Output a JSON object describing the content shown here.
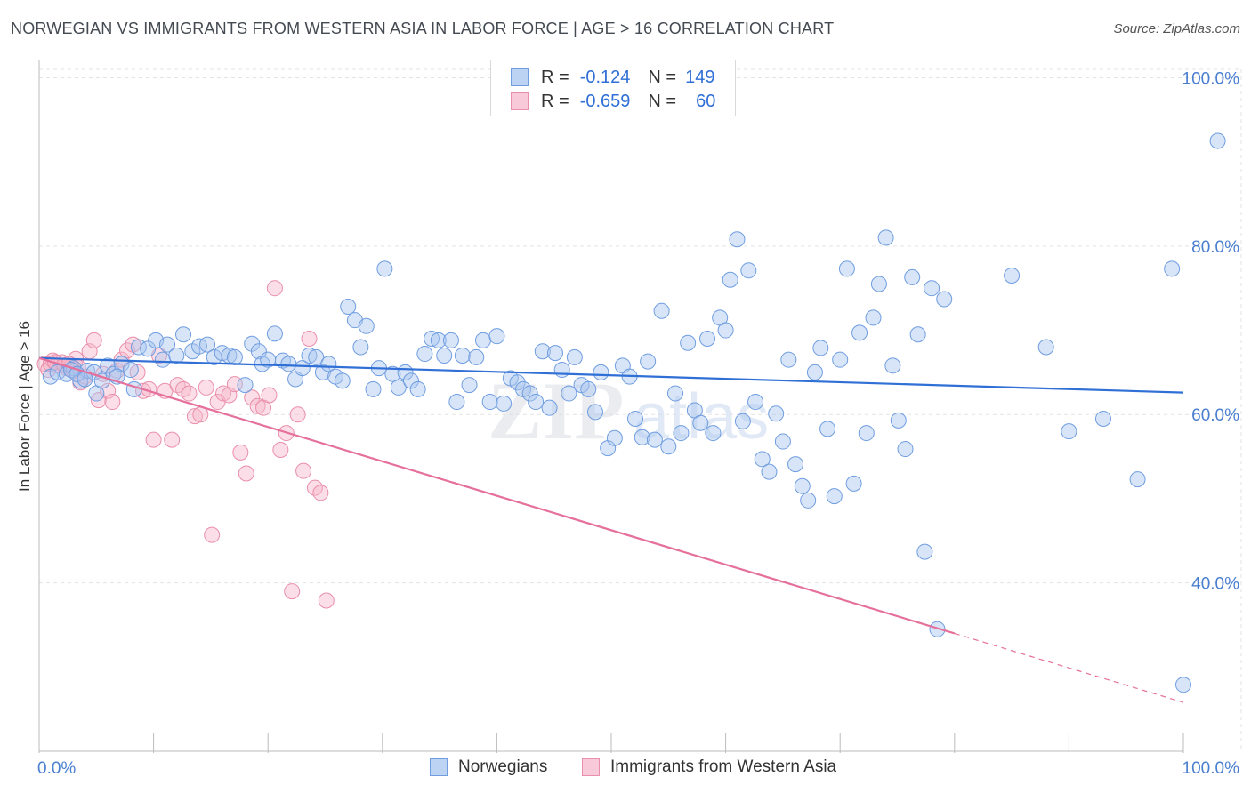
{
  "header": {
    "title": "NORWEGIAN VS IMMIGRANTS FROM WESTERN ASIA IN LABOR FORCE | AGE > 16 CORRELATION CHART",
    "source": "Source: ZipAtlas.com"
  },
  "legend": {
    "rows": [
      {
        "r_label": "R =",
        "r_value": "-0.124",
        "n_label": "N =",
        "n_value": "149"
      },
      {
        "r_label": "R =",
        "r_value": "-0.659",
        "n_label": "N =",
        "n_value": "60"
      }
    ]
  },
  "bottom_legend": {
    "items": [
      {
        "label": "Norwegians"
      },
      {
        "label": "Immigrants from Western Asia"
      }
    ]
  },
  "colors": {
    "blue_fill": "#a9c6f0",
    "blue_stroke": "#6f9de0",
    "blue_line": "#2f6fd6",
    "pink_fill": "#f6b6ca",
    "pink_stroke": "#ea8fab",
    "pink_line": "#e5709b",
    "tick_text": "#4a7fd0",
    "grid": "#e3e3e3"
  },
  "chart_data": {
    "type": "scatter",
    "title": "NORWEGIAN VS IMMIGRANTS FROM WESTERN ASIA IN LABOR FORCE | AGE > 16 CORRELATION CHART",
    "xlabel": "",
    "ylabel": "In Labor Force | Age > 16",
    "xlim": [
      0,
      100
    ],
    "ylim": [
      20,
      101
    ],
    "x_tick_labels": [
      "0.0%",
      "100.0%"
    ],
    "y_ticks": [
      40,
      60,
      80,
      100
    ],
    "y_tick_labels": [
      "40.0%",
      "60.0%",
      "80.0%",
      "100.0%"
    ],
    "grid": true,
    "watermark": "ZIPatlas",
    "series": [
      {
        "name": "Norwegians",
        "points": [
          [
            1.0,
            64.5
          ],
          [
            1.6,
            65.0
          ],
          [
            2.4,
            64.8
          ],
          [
            3.0,
            65.5
          ],
          [
            3.6,
            64.0
          ],
          [
            4.2,
            65.2
          ],
          [
            4.8,
            65.0
          ],
          [
            5.0,
            62.5
          ],
          [
            5.5,
            64.0
          ],
          [
            6.0,
            65.8
          ],
          [
            6.5,
            64.8
          ],
          [
            7.2,
            66.0
          ],
          [
            8.0,
            65.3
          ],
          [
            8.7,
            68.0
          ],
          [
            9.5,
            67.8
          ],
          [
            10.2,
            68.8
          ],
          [
            10.8,
            66.5
          ],
          [
            11.2,
            68.3
          ],
          [
            12.0,
            67.0
          ],
          [
            12.6,
            69.5
          ],
          [
            13.4,
            67.5
          ],
          [
            14.0,
            68.1
          ],
          [
            14.7,
            68.3
          ],
          [
            15.3,
            66.8
          ],
          [
            16.0,
            67.3
          ],
          [
            16.6,
            67.0
          ],
          [
            17.1,
            66.8
          ],
          [
            18.0,
            63.5
          ],
          [
            18.6,
            68.4
          ],
          [
            19.2,
            67.5
          ],
          [
            19.5,
            66.0
          ],
          [
            20.0,
            66.5
          ],
          [
            20.6,
            69.6
          ],
          [
            21.3,
            66.4
          ],
          [
            21.8,
            66.0
          ],
          [
            22.4,
            64.2
          ],
          [
            23.0,
            65.5
          ],
          [
            23.6,
            67.0
          ],
          [
            24.2,
            66.8
          ],
          [
            24.8,
            65.0
          ],
          [
            25.3,
            66.0
          ],
          [
            25.9,
            64.5
          ],
          [
            26.5,
            64.0
          ],
          [
            27.0,
            72.8
          ],
          [
            27.6,
            71.2
          ],
          [
            28.1,
            68.0
          ],
          [
            28.6,
            70.5
          ],
          [
            29.2,
            63.0
          ],
          [
            29.7,
            65.5
          ],
          [
            30.2,
            77.3
          ],
          [
            30.9,
            64.8
          ],
          [
            31.4,
            63.2
          ],
          [
            32.0,
            65.0
          ],
          [
            32.5,
            64.0
          ],
          [
            33.1,
            63.0
          ],
          [
            33.7,
            67.2
          ],
          [
            34.3,
            69.0
          ],
          [
            34.9,
            68.8
          ],
          [
            35.4,
            67.0
          ],
          [
            36.0,
            68.8
          ],
          [
            36.5,
            61.5
          ],
          [
            37.0,
            67.0
          ],
          [
            37.6,
            63.5
          ],
          [
            38.2,
            66.8
          ],
          [
            38.8,
            68.8
          ],
          [
            39.4,
            61.5
          ],
          [
            40.0,
            69.3
          ],
          [
            40.6,
            61.3
          ],
          [
            41.2,
            64.3
          ],
          [
            41.8,
            63.8
          ],
          [
            42.3,
            63.0
          ],
          [
            42.9,
            62.5
          ],
          [
            43.4,
            61.5
          ],
          [
            44.0,
            67.5
          ],
          [
            44.6,
            60.8
          ],
          [
            45.1,
            67.3
          ],
          [
            45.7,
            65.3
          ],
          [
            46.3,
            62.5
          ],
          [
            46.8,
            66.8
          ],
          [
            47.4,
            63.5
          ],
          [
            48.0,
            63.0
          ],
          [
            48.6,
            60.3
          ],
          [
            49.1,
            65.0
          ],
          [
            49.7,
            56.0
          ],
          [
            50.3,
            57.2
          ],
          [
            51.0,
            65.8
          ],
          [
            51.6,
            64.5
          ],
          [
            52.1,
            59.5
          ],
          [
            52.7,
            57.3
          ],
          [
            53.2,
            66.3
          ],
          [
            53.8,
            57.0
          ],
          [
            54.4,
            72.3
          ],
          [
            55.0,
            56.2
          ],
          [
            55.6,
            62.5
          ],
          [
            56.1,
            57.8
          ],
          [
            56.7,
            68.5
          ],
          [
            57.3,
            60.5
          ],
          [
            57.8,
            59.0
          ],
          [
            58.4,
            69.0
          ],
          [
            58.9,
            57.8
          ],
          [
            59.5,
            71.5
          ],
          [
            60.0,
            70.0
          ],
          [
            60.4,
            76.0
          ],
          [
            61.0,
            80.8
          ],
          [
            61.5,
            59.2
          ],
          [
            62.0,
            77.1
          ],
          [
            62.6,
            61.5
          ],
          [
            63.2,
            54.7
          ],
          [
            63.8,
            53.2
          ],
          [
            64.4,
            60.1
          ],
          [
            65.0,
            56.8
          ],
          [
            65.5,
            66.5
          ],
          [
            66.1,
            54.1
          ],
          [
            66.7,
            51.5
          ],
          [
            67.2,
            49.8
          ],
          [
            67.8,
            65.0
          ],
          [
            68.3,
            67.9
          ],
          [
            68.9,
            58.3
          ],
          [
            69.5,
            50.3
          ],
          [
            70.0,
            66.5
          ],
          [
            70.6,
            77.3
          ],
          [
            71.2,
            51.8
          ],
          [
            71.7,
            69.7
          ],
          [
            72.3,
            57.8
          ],
          [
            72.9,
            71.5
          ],
          [
            73.4,
            75.5
          ],
          [
            74.0,
            81.0
          ],
          [
            74.6,
            65.8
          ],
          [
            75.1,
            59.3
          ],
          [
            75.7,
            55.9
          ],
          [
            76.3,
            76.3
          ],
          [
            76.8,
            69.5
          ],
          [
            77.4,
            43.7
          ],
          [
            78.0,
            75.0
          ],
          [
            78.5,
            34.5
          ],
          [
            79.1,
            73.7
          ],
          [
            85.0,
            76.5
          ],
          [
            88.0,
            68.0
          ],
          [
            90.0,
            58.0
          ],
          [
            93.0,
            59.5
          ],
          [
            96.0,
            52.3
          ],
          [
            99.0,
            77.3
          ],
          [
            100.0,
            27.9
          ],
          [
            103.0,
            92.5
          ],
          [
            2.8,
            65.3
          ],
          [
            3.3,
            64.8
          ],
          [
            4.0,
            64.2
          ],
          [
            6.8,
            64.5
          ],
          [
            8.3,
            63.0
          ]
        ],
        "trend": [
          [
            0,
            66.7
          ],
          [
            100,
            62.6
          ]
        ]
      },
      {
        "name": "Immigrants from Western Asia",
        "points": [
          [
            0.5,
            66.0
          ],
          [
            0.8,
            65.3
          ],
          [
            1.2,
            66.4
          ],
          [
            1.6,
            65.8
          ],
          [
            2.0,
            66.2
          ],
          [
            2.4,
            65.5
          ],
          [
            2.8,
            65.7
          ],
          [
            3.2,
            66.6
          ],
          [
            3.6,
            63.8
          ],
          [
            4.0,
            64.5
          ],
          [
            4.4,
            67.5
          ],
          [
            4.8,
            68.8
          ],
          [
            5.2,
            61.7
          ],
          [
            5.6,
            64.8
          ],
          [
            6.0,
            62.8
          ],
          [
            6.4,
            61.5
          ],
          [
            6.8,
            65.2
          ],
          [
            7.2,
            66.5
          ],
          [
            7.7,
            67.6
          ],
          [
            8.2,
            68.3
          ],
          [
            8.6,
            65.0
          ],
          [
            9.1,
            62.8
          ],
          [
            9.6,
            63.0
          ],
          [
            10.0,
            57.0
          ],
          [
            10.5,
            67.0
          ],
          [
            11.0,
            62.8
          ],
          [
            11.6,
            57.0
          ],
          [
            12.1,
            63.5
          ],
          [
            12.6,
            63.0
          ],
          [
            13.1,
            62.5
          ],
          [
            13.6,
            59.8
          ],
          [
            14.1,
            60.0
          ],
          [
            14.6,
            63.2
          ],
          [
            15.1,
            45.7
          ],
          [
            15.6,
            61.5
          ],
          [
            16.1,
            62.5
          ],
          [
            16.6,
            62.3
          ],
          [
            17.1,
            63.6
          ],
          [
            17.6,
            55.5
          ],
          [
            18.1,
            53.0
          ],
          [
            18.6,
            62.0
          ],
          [
            19.1,
            61.0
          ],
          [
            19.6,
            60.8
          ],
          [
            20.1,
            62.3
          ],
          [
            20.6,
            75.0
          ],
          [
            21.1,
            55.8
          ],
          [
            21.6,
            57.8
          ],
          [
            22.1,
            39.0
          ],
          [
            22.6,
            60.0
          ],
          [
            23.1,
            53.3
          ],
          [
            23.6,
            69.0
          ],
          [
            24.1,
            51.3
          ],
          [
            24.6,
            50.7
          ],
          [
            25.1,
            37.9
          ],
          [
            1.0,
            66.0
          ],
          [
            1.4,
            66.2
          ],
          [
            2.2,
            65.8
          ],
          [
            2.6,
            66.0
          ],
          [
            3.0,
            65.2
          ],
          [
            3.4,
            65.6
          ]
        ],
        "trend": [
          [
            0,
            66.7
          ],
          [
            80,
            34.0
          ]
        ],
        "trend_dashed_extension": [
          [
            80,
            34.0
          ],
          [
            100,
            25.8
          ]
        ]
      }
    ]
  }
}
